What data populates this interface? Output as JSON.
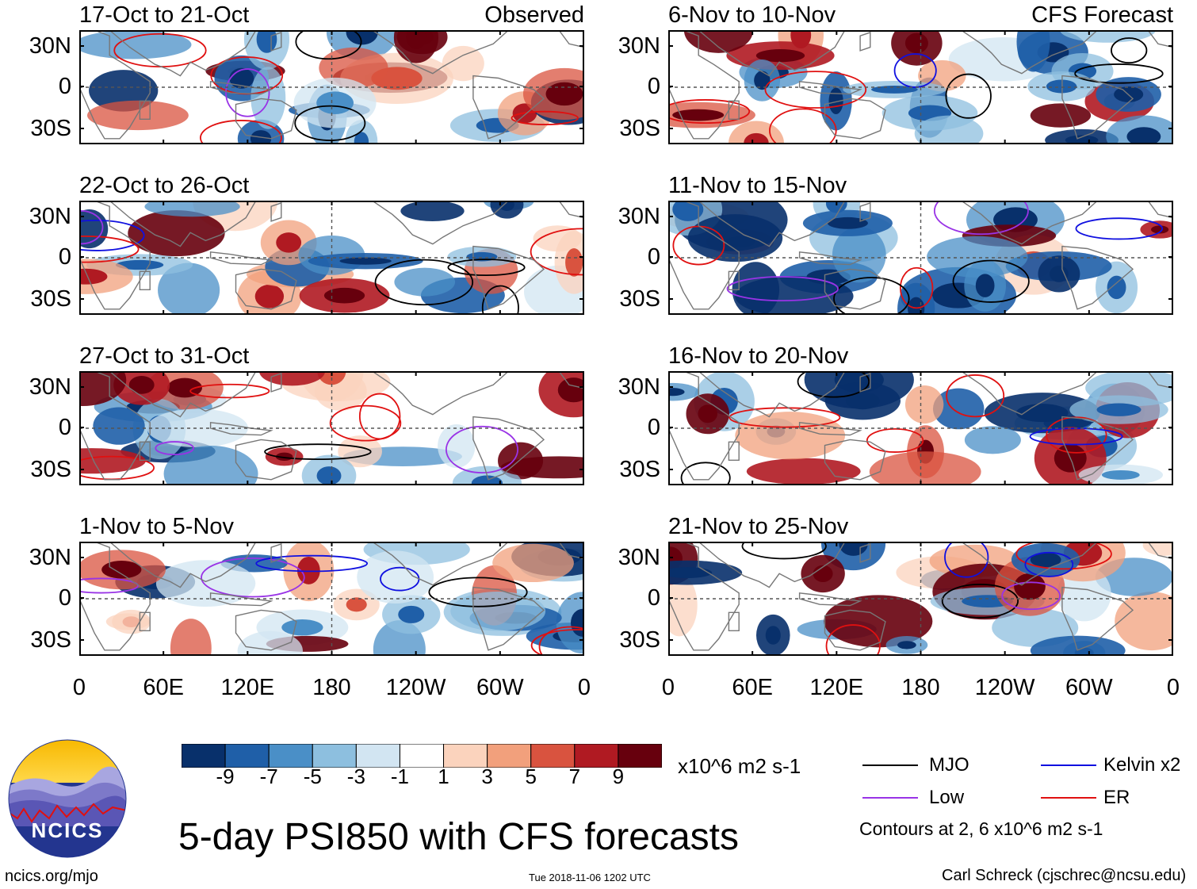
{
  "panels": {
    "observed": [
      {
        "date": "17-Oct to 21-Oct",
        "tag": "Observed"
      },
      {
        "date": "22-Oct to 26-Oct",
        "tag": ""
      },
      {
        "date": "27-Oct to 31-Oct",
        "tag": ""
      },
      {
        "date": "1-Nov to 5-Nov",
        "tag": ""
      }
    ],
    "forecast": [
      {
        "date": "6-Nov to 10-Nov",
        "tag": "CFS Forecast"
      },
      {
        "date": "11-Nov to 15-Nov",
        "tag": ""
      },
      {
        "date": "16-Nov to 20-Nov",
        "tag": ""
      },
      {
        "date": "21-Nov to 25-Nov",
        "tag": ""
      }
    ]
  },
  "axes": {
    "lat_labels": [
      "30N",
      "0",
      "30S"
    ],
    "lon_labels": [
      "0",
      "60E",
      "120E",
      "180",
      "120W",
      "60W",
      "0"
    ]
  },
  "colorbar": {
    "tick_labels": [
      "-9",
      "-7",
      "-5",
      "-3",
      "-1",
      "1",
      "3",
      "5",
      "7",
      "9"
    ],
    "colors": [
      "#08306b",
      "#1f5fa8",
      "#4a8fc7",
      "#8dbfdf",
      "#d2e5f2",
      "#ffffff",
      "#fbd3bd",
      "#f2a07c",
      "#d9533f",
      "#b01a22",
      "#67000d"
    ],
    "units": "x10^6 m2 s-1"
  },
  "legend": {
    "items": [
      {
        "label": "MJO",
        "color": "#000000"
      },
      {
        "label": "Kelvin x2",
        "color": "#1010e0"
      },
      {
        "label": "Low",
        "color": "#9933e6"
      },
      {
        "label": "ER",
        "color": "#e01010"
      }
    ],
    "contour_note": "Contours at 2, 6 x10^6 m2 s-1"
  },
  "logo_text": "NCICS",
  "main_title": "5-day PSI850 with CFS forecasts",
  "footer": {
    "left": "ncics.org/mjo",
    "center": "Tue 2018-11-06 1202 UTC",
    "right": "Carl Schreck (cjschrec@ncsu.edu)"
  }
}
